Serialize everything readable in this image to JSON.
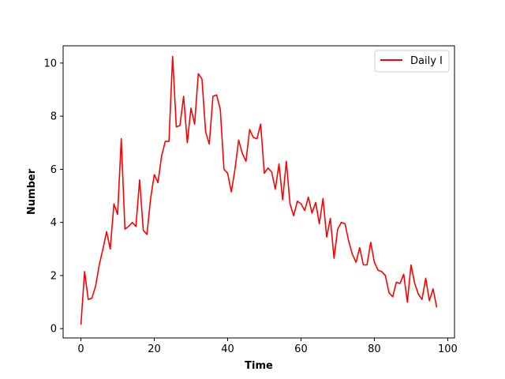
{
  "chart_data": {
    "type": "line",
    "title": "",
    "xlabel": "Time",
    "ylabel": "Number",
    "xlim": [
      -4.85,
      101.85
    ],
    "ylim": [
      -0.35,
      10.65
    ],
    "xticks": [
      0,
      20,
      40,
      60,
      80,
      100
    ],
    "yticks": [
      0,
      2,
      4,
      6,
      8,
      10
    ],
    "grid": false,
    "legend_position": "top-right",
    "series": [
      {
        "name": "Daily I",
        "color": "#ff0000",
        "x": [
          0,
          1,
          2,
          3,
          4,
          5,
          6,
          7,
          8,
          9,
          10,
          11,
          12,
          13,
          14,
          15,
          16,
          17,
          18,
          19,
          20,
          21,
          22,
          23,
          24,
          25,
          26,
          27,
          28,
          29,
          30,
          31,
          32,
          33,
          34,
          35,
          36,
          37,
          38,
          39,
          40,
          41,
          42,
          43,
          44,
          45,
          46,
          47,
          48,
          49,
          50,
          51,
          52,
          53,
          54,
          55,
          56,
          57,
          58,
          59,
          60,
          61,
          62,
          63,
          64,
          65,
          66,
          67,
          68,
          69,
          70,
          71,
          72,
          73,
          74,
          75,
          76,
          77,
          78,
          79,
          80,
          81,
          82,
          83,
          84,
          85,
          86,
          87,
          88,
          89,
          90,
          91,
          92,
          93,
          94,
          95,
          96,
          97
        ],
        "y": [
          0.15,
          2.15,
          1.1,
          1.15,
          1.6,
          2.4,
          3.0,
          3.65,
          3.0,
          4.7,
          4.3,
          7.15,
          3.75,
          3.85,
          4.0,
          3.85,
          5.6,
          3.7,
          3.55,
          4.9,
          5.8,
          5.5,
          6.5,
          7.05,
          7.05,
          10.25,
          7.6,
          7.65,
          8.75,
          7.0,
          8.3,
          7.7,
          9.6,
          9.4,
          7.4,
          6.95,
          8.75,
          8.8,
          8.25,
          6.0,
          5.85,
          5.15,
          6.0,
          7.1,
          6.6,
          6.3,
          7.5,
          7.2,
          7.15,
          7.7,
          5.85,
          6.05,
          5.9,
          5.25,
          6.2,
          4.85,
          6.3,
          4.7,
          4.25,
          4.8,
          4.7,
          4.45,
          4.95,
          4.35,
          4.75,
          3.95,
          4.9,
          3.45,
          4.15,
          2.65,
          3.75,
          4.0,
          3.95,
          3.3,
          2.8,
          2.5,
          3.05,
          2.4,
          2.4,
          3.25,
          2.5,
          2.2,
          2.15,
          2.0,
          1.35,
          1.2,
          1.75,
          1.7,
          2.05,
          1.0,
          2.4,
          1.7,
          1.3,
          1.1,
          1.9,
          1.05,
          1.5,
          0.8
        ]
      }
    ]
  }
}
